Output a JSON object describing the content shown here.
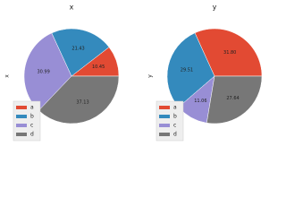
{
  "chart_data": [
    {
      "type": "pie",
      "title": "x",
      "ylabel": "x",
      "categories": [
        "a",
        "b",
        "c",
        "d"
      ],
      "values": [
        10.45,
        21.43,
        30.99,
        37.13
      ],
      "value_labels": [
        "10.45",
        "21.43",
        "30.99",
        "37.13"
      ],
      "colors": [
        "#E24A33",
        "#348ABD",
        "#988ED5",
        "#777777"
      ],
      "legend": "lower left"
    },
    {
      "type": "pie",
      "title": "y",
      "ylabel": "y",
      "categories": [
        "a",
        "b",
        "c",
        "d"
      ],
      "values": [
        31.8,
        29.51,
        11.06,
        27.64
      ],
      "value_labels": [
        "31.80",
        "29.51",
        "11.06",
        "27.64"
      ],
      "colors": [
        "#E24A33",
        "#348ABD",
        "#988ED5",
        "#777777"
      ],
      "legend": "lower left"
    }
  ]
}
